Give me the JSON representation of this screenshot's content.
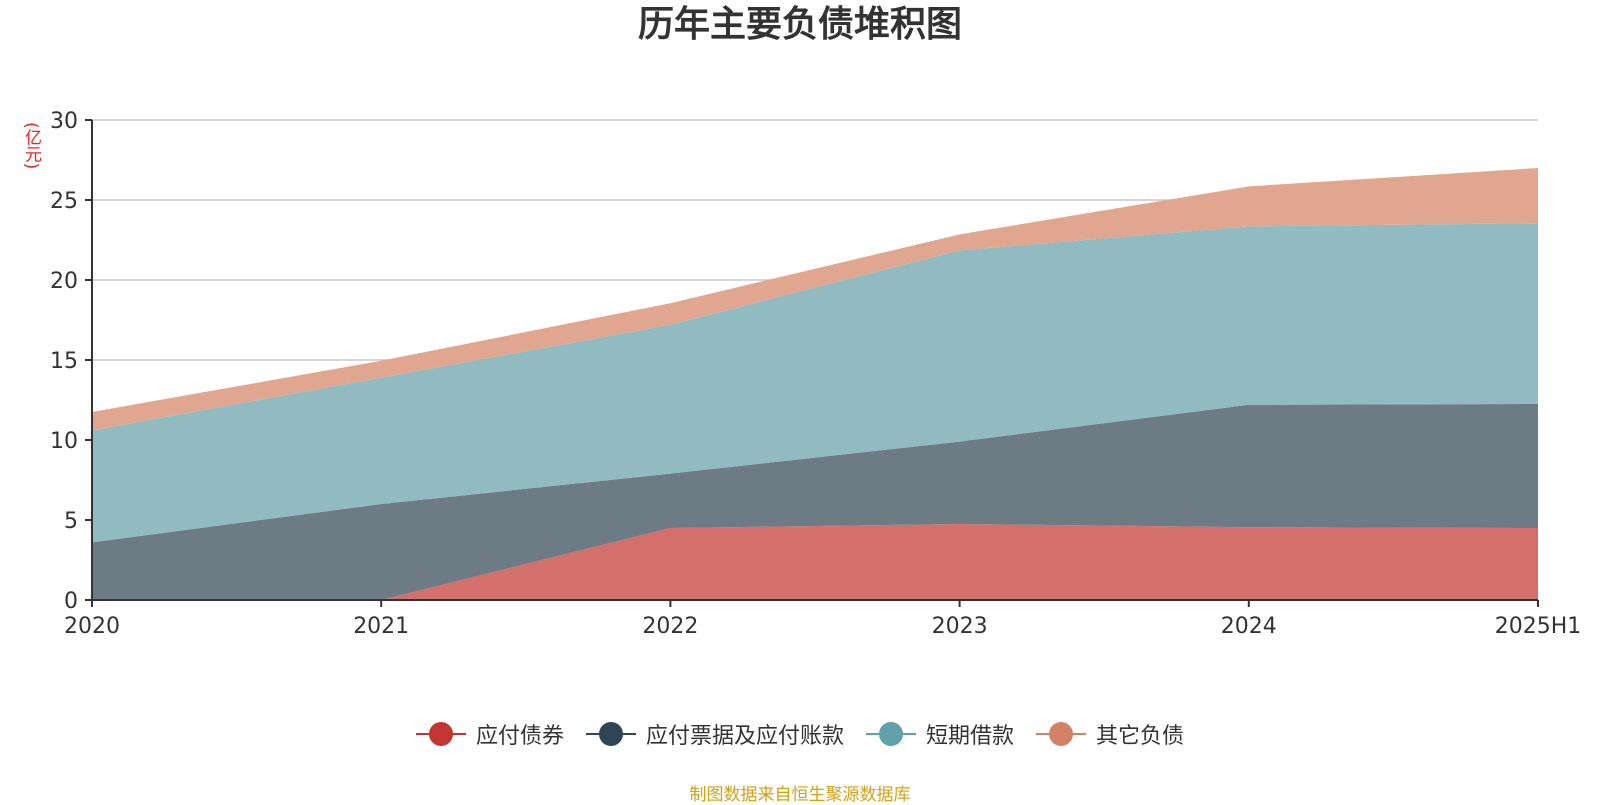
{
  "chart_data": {
    "type": "area",
    "stacked": true,
    "title": "历年主要负债堆积图",
    "unit_label": "(亿元)",
    "categories": [
      "2020",
      "2021",
      "2022",
      "2023",
      "2024",
      "2025H1"
    ],
    "y_ticks": [
      "0",
      "5",
      "10",
      "15",
      "20",
      "25",
      "30"
    ],
    "ylim": [
      0,
      30
    ],
    "grid": true,
    "legend_position": "bottom",
    "series": [
      {
        "name": "应付债券",
        "color": "#c23531",
        "fill": "#d4706c",
        "values": [
          0,
          0,
          4.5,
          4.75,
          4.55,
          4.5
        ]
      },
      {
        "name": "应付票据及应付账款",
        "color": "#2f4554",
        "fill": "#6d7b85",
        "values": [
          3.6,
          6.0,
          3.4,
          5.15,
          7.65,
          7.75
        ]
      },
      {
        "name": "短期借款",
        "color": "#61a0a8",
        "fill": "#91bbc1",
        "values": [
          7.0,
          7.9,
          9.3,
          11.95,
          11.15,
          11.3
        ]
      },
      {
        "name": "其它负债",
        "color": "#d48265",
        "fill": "#e0a690",
        "values": [
          1.15,
          1.05,
          1.35,
          1.0,
          2.5,
          3.45
        ]
      }
    ],
    "source": "制图数据来自恒生聚源数据库"
  }
}
